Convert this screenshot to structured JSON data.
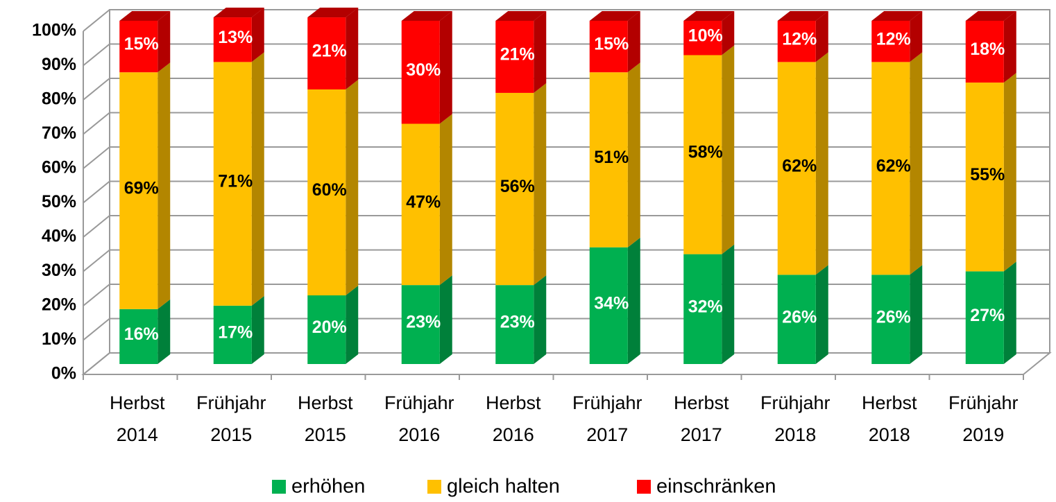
{
  "chart_data": {
    "type": "bar3d_stacked",
    "categories": [
      "Herbst 2014",
      "Frühjahr 2015",
      "Herbst 2015",
      "Frühjahr 2016",
      "Herbst 2016",
      "Frühjahr 2017",
      "Herbst 2017",
      "Frühjahr 2018",
      "Herbst 2018",
      "Frühjahr 2019"
    ],
    "series": [
      {
        "name": "erhöhen",
        "color": "#00b050",
        "side_color": "#00803a",
        "label_color": "#ffffff",
        "values": [
          16,
          17,
          20,
          23,
          23,
          34,
          32,
          26,
          26,
          27
        ],
        "value_labels": [
          "16%",
          "17%",
          "20%",
          "23%",
          "23%",
          "34%",
          "32%",
          "26%",
          "26%",
          "27%"
        ]
      },
      {
        "name": "gleich halten",
        "color": "#ffc000",
        "side_color": "#b38600",
        "label_color": "#000000",
        "values": [
          69,
          71,
          60,
          47,
          56,
          51,
          58,
          62,
          62,
          55
        ],
        "value_labels": [
          "69%",
          "71%",
          "60%",
          "47%",
          "56%",
          "51%",
          "58%",
          "62%",
          "62%",
          "55%"
        ]
      },
      {
        "name": "einschränken",
        "color": "#ff0000",
        "side_color": "#b30000",
        "label_color": "#ffffff",
        "values": [
          15,
          13,
          21,
          30,
          21,
          15,
          10,
          12,
          12,
          18
        ],
        "value_labels": [
          "15%",
          "13%",
          "21%",
          "30%",
          "21%",
          "15%",
          "10%",
          "12%",
          "12%",
          "18%"
        ]
      }
    ],
    "ylim": [
      0,
      100
    ],
    "yticks": [
      {
        "value": 0,
        "label": "0%"
      },
      {
        "value": 10,
        "label": "10%"
      },
      {
        "value": 20,
        "label": "20%"
      },
      {
        "value": 30,
        "label": "30%"
      },
      {
        "value": 40,
        "label": "40%"
      },
      {
        "value": 50,
        "label": "50%"
      },
      {
        "value": 60,
        "label": "60%"
      },
      {
        "value": 70,
        "label": "70%"
      },
      {
        "value": 80,
        "label": "80%"
      },
      {
        "value": 90,
        "label": "90%"
      },
      {
        "value": 100,
        "label": "100%"
      }
    ],
    "grid": true,
    "legend": "bottom"
  }
}
